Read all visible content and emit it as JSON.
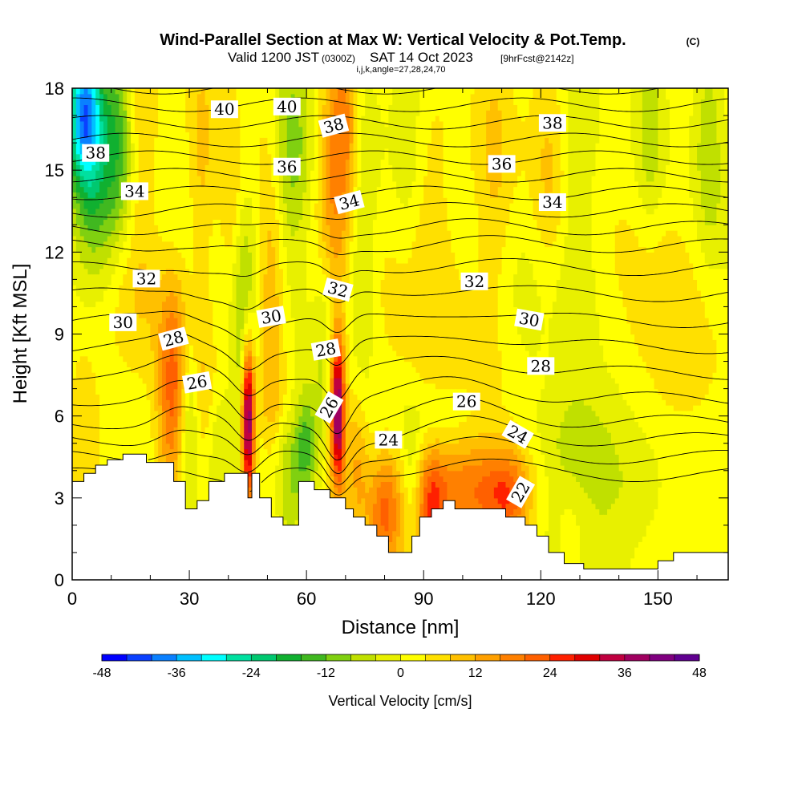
{
  "header": {
    "title": "Wind-Parallel Section at Max W: Vertical Velocity & Pot.Temp.",
    "copyright": "(C)",
    "valid_prefix": "Valid 1200 JST",
    "valid_utc": "(0300Z)",
    "valid_date": "SAT 14 Oct 2023",
    "forecast": "[9hrFcst@2142z]",
    "indices": "i,j,k,angle=27,28,24,70"
  },
  "colors": {
    "background": "#ffffff",
    "terrain": "#ffffff",
    "contour": "#000000",
    "colorbar": [
      "#0000ff",
      "#0a40ff",
      "#0a80ff",
      "#00c0ff",
      "#00ffff",
      "#00e0a0",
      "#00c870",
      "#10b030",
      "#40b820",
      "#80d010",
      "#c0e000",
      "#e8f000",
      "#ffff00",
      "#ffe000",
      "#ffc000",
      "#ffa000",
      "#ff8000",
      "#ff6000",
      "#ff2000",
      "#e00000",
      "#c00040",
      "#a00060",
      "#800080",
      "#600090"
    ]
  },
  "chart_data": {
    "type": "heatmap",
    "title": "Wind-Parallel Section at Max W: Vertical Velocity & Pot.Temp.",
    "xlabel": "Distance [nm]",
    "ylabel": "Height [Kft MSL]",
    "xlim": [
      0,
      168
    ],
    "ylim": [
      0,
      18
    ],
    "x_ticks": [
      0,
      30,
      60,
      90,
      120,
      150
    ],
    "y_ticks": [
      0,
      3,
      6,
      9,
      12,
      15,
      18
    ],
    "colorbar": {
      "label": "Vertical Velocity [cm/s]",
      "ticks": [
        -48,
        -36,
        -24,
        -12,
        0,
        12,
        24,
        36,
        48
      ],
      "range": [
        -48,
        48
      ],
      "step": 4
    },
    "terrain_profile": {
      "x": [
        0,
        3,
        3,
        6,
        6,
        9,
        9,
        13,
        13,
        19,
        19,
        26,
        26,
        29,
        29,
        32,
        32,
        35,
        35,
        39,
        39,
        45,
        45,
        46,
        46,
        48,
        48,
        51,
        51,
        54,
        54,
        58,
        58,
        62,
        62,
        66,
        66,
        70,
        70,
        72,
        72,
        75,
        75,
        78,
        78,
        81,
        81,
        84,
        84,
        87,
        87,
        89,
        89,
        92,
        92,
        95,
        95,
        98,
        98,
        111,
        111,
        116,
        116,
        119,
        119,
        122,
        122,
        126,
        126,
        131,
        131,
        144,
        144,
        150,
        150,
        154,
        154,
        168
      ],
      "y": [
        3.6,
        3.6,
        3.9,
        3.9,
        4.2,
        4.2,
        4.4,
        4.4,
        4.6,
        4.6,
        4.3,
        4.3,
        3.6,
        3.6,
        2.6,
        2.6,
        2.9,
        2.9,
        3.6,
        3.6,
        3.9,
        3.9,
        3.0,
        3.0,
        3.9,
        3.9,
        3.0,
        3.0,
        2.3,
        2.3,
        2.0,
        2.0,
        3.6,
        3.6,
        3.3,
        3.3,
        3.0,
        3.0,
        2.6,
        2.6,
        2.3,
        2.3,
        2.0,
        2.0,
        1.6,
        1.6,
        1.0,
        1.0,
        1.0,
        1.0,
        1.6,
        1.6,
        2.3,
        2.3,
        2.6,
        2.6,
        2.9,
        2.9,
        2.6,
        2.6,
        2.3,
        2.3,
        2.0,
        2.0,
        1.6,
        1.6,
        1.0,
        1.0,
        0.6,
        0.6,
        0.4,
        0.4,
        0.4,
        0.4,
        0.7,
        0.7,
        1.0,
        1.0
      ]
    },
    "velocity_features": [
      {
        "x": 45,
        "y": 5.8,
        "sx": 1.2,
        "sy": 2.2,
        "w": 46
      },
      {
        "x": 68,
        "y": 6.2,
        "sx": 1.3,
        "sy": 1.9,
        "w": 40
      },
      {
        "x": 44,
        "y": 10.0,
        "sx": 2.2,
        "sy": 4.5,
        "w": -14
      },
      {
        "x": 42,
        "y": 13.5,
        "sx": 3.0,
        "sy": 3.0,
        "w": 10
      },
      {
        "x": 51,
        "y": 9.0,
        "sx": 2.5,
        "sy": 5.5,
        "w": 12
      },
      {
        "x": 56,
        "y": 15.5,
        "sx": 4.0,
        "sy": 2.8,
        "w": -14
      },
      {
        "x": 65,
        "y": 9.0,
        "sx": 2.2,
        "sy": 3.0,
        "w": -12
      },
      {
        "x": 66,
        "y": 13.0,
        "sx": 2.5,
        "sy": 5.0,
        "w": 12
      },
      {
        "x": 70,
        "y": 16.5,
        "sx": 2.5,
        "sy": 2.5,
        "w": 16
      },
      {
        "x": 74,
        "y": 12.0,
        "sx": 2.5,
        "sy": 4.0,
        "w": -8
      },
      {
        "x": 3,
        "y": 17.2,
        "sx": 3.0,
        "sy": 1.8,
        "w": -32
      },
      {
        "x": 6,
        "y": 15.0,
        "sx": 4.0,
        "sy": 3.0,
        "w": -12
      },
      {
        "x": 5,
        "y": 13.5,
        "sx": 6.0,
        "sy": 3.0,
        "w": -6
      },
      {
        "x": 18,
        "y": 16.0,
        "sx": 3.0,
        "sy": 3.5,
        "w": 8
      },
      {
        "x": 12,
        "y": 16.5,
        "sx": 2.5,
        "sy": 2.5,
        "w": -10
      },
      {
        "x": 25,
        "y": 6.5,
        "sx": 2.5,
        "sy": 3.0,
        "w": 16
      },
      {
        "x": 27,
        "y": 8.0,
        "sx": 2.0,
        "sy": 2.5,
        "w": 6
      },
      {
        "x": 30,
        "y": 5.8,
        "sx": 1.8,
        "sy": 2.0,
        "w": -8
      },
      {
        "x": 34,
        "y": 6.0,
        "sx": 2.0,
        "sy": 2.5,
        "w": 8
      },
      {
        "x": 36,
        "y": 5.0,
        "sx": 2.5,
        "sy": 1.5,
        "w": -6
      },
      {
        "x": 55,
        "y": 4.8,
        "sx": 5.0,
        "sy": 1.0,
        "w": -8
      },
      {
        "x": 60,
        "y": 5.0,
        "sx": 2.0,
        "sy": 1.5,
        "w": -12
      },
      {
        "x": 55,
        "y": 3.0,
        "sx": 3.0,
        "sy": 1.0,
        "w": -8
      },
      {
        "x": 73,
        "y": 4.5,
        "sx": 2.0,
        "sy": 2.0,
        "w": 10
      },
      {
        "x": 80,
        "y": 2.5,
        "sx": 3.0,
        "sy": 1.5,
        "w": 16
      },
      {
        "x": 87,
        "y": 3.6,
        "sx": 2.0,
        "sy": 1.8,
        "w": -8
      },
      {
        "x": 92,
        "y": 2.5,
        "sx": 2.5,
        "sy": 1.5,
        "w": 14
      },
      {
        "x": 102,
        "y": 3.2,
        "sx": 10.0,
        "sy": 1.6,
        "w": 18
      },
      {
        "x": 97,
        "y": 5.8,
        "sx": 8.0,
        "sy": 1.0,
        "w": -5
      },
      {
        "x": 112,
        "y": 3.0,
        "sx": 4.0,
        "sy": 1.2,
        "w": 14
      },
      {
        "x": 128,
        "y": 5.0,
        "sx": 8.0,
        "sy": 1.5,
        "w": -6
      },
      {
        "x": 140,
        "y": 3.0,
        "sx": 12.0,
        "sy": 2.0,
        "w": -7
      },
      {
        "x": 128,
        "y": 1.8,
        "sx": 3.0,
        "sy": 1.5,
        "w": 4
      },
      {
        "x": 122,
        "y": 14.0,
        "sx": 3.0,
        "sy": 4.0,
        "w": 6
      },
      {
        "x": 108,
        "y": 15.0,
        "sx": 3.0,
        "sy": 4.0,
        "w": 6
      },
      {
        "x": 130,
        "y": 16.0,
        "sx": 3.0,
        "sy": 4.0,
        "w": -6
      },
      {
        "x": 148,
        "y": 16.5,
        "sx": 2.5,
        "sy": 2.5,
        "w": -8
      },
      {
        "x": 163,
        "y": 16.0,
        "sx": 2.5,
        "sy": 3.0,
        "w": -8
      },
      {
        "x": 125,
        "y": 11.0,
        "sx": 8.0,
        "sy": 2.5,
        "w": -4
      },
      {
        "x": 86,
        "y": 16.5,
        "sx": 2.5,
        "sy": 3.5,
        "w": -6
      },
      {
        "x": 90,
        "y": 13.5,
        "sx": 5.0,
        "sy": 3.0,
        "w": 5
      },
      {
        "x": 33,
        "y": 15.0,
        "sx": 2.5,
        "sy": 4.0,
        "w": 8
      },
      {
        "x": 100,
        "y": 10.0,
        "sx": 10.0,
        "sy": 5.0,
        "w": 4
      },
      {
        "x": 155,
        "y": 9.0,
        "sx": 8.0,
        "sy": 5.0,
        "w": 4
      },
      {
        "x": 16,
        "y": 10.5,
        "sx": 8.0,
        "sy": 2.0,
        "w": 4
      },
      {
        "x": 3,
        "y": 6.0,
        "sx": 3.0,
        "sy": 2.0,
        "w": 6
      }
    ],
    "potential_temperature": {
      "base_height": 3.2,
      "base_theta": 19,
      "lapse": [
        {
          "to_height": 6.0,
          "per_kft": 1.55
        },
        {
          "to_height": 12.0,
          "per_kft": 1.05
        },
        {
          "to_height": 18.0,
          "per_kft": 1.55
        }
      ],
      "levels": [
        20,
        21,
        22,
        23,
        24,
        25,
        26,
        27,
        28,
        29,
        30,
        31,
        32,
        33,
        34,
        35,
        36,
        37,
        38,
        39,
        40,
        41
      ],
      "wave_perturbations": [
        {
          "x": 45,
          "sx": 3.5,
          "amp_kft": -0.9
        },
        {
          "x": 68,
          "sx": 3.0,
          "amp_kft": -1.2
        },
        {
          "x": 27,
          "sx": 5.0,
          "amp_kft": 0.5
        },
        {
          "x": 100,
          "sx": 12.0,
          "amp_kft": 0.7
        }
      ],
      "labels": [
        {
          "text": "40",
          "x": 39,
          "y": 17.2,
          "angle": 0
        },
        {
          "text": "40",
          "x": 55,
          "y": 17.3,
          "angle": 0
        },
        {
          "text": "38",
          "x": 67,
          "y": 16.6,
          "angle": -15
        },
        {
          "text": "38",
          "x": 6,
          "y": 15.6,
          "angle": 0
        },
        {
          "text": "38",
          "x": 123,
          "y": 16.7,
          "angle": 0
        },
        {
          "text": "36",
          "x": 55,
          "y": 15.1,
          "angle": 0
        },
        {
          "text": "36",
          "x": 110,
          "y": 15.2,
          "angle": 0
        },
        {
          "text": "34",
          "x": 16,
          "y": 14.2,
          "angle": 0
        },
        {
          "text": "34",
          "x": 71,
          "y": 13.8,
          "angle": -15
        },
        {
          "text": "34",
          "x": 123,
          "y": 13.8,
          "angle": 0
        },
        {
          "text": "32",
          "x": 19,
          "y": 11.0,
          "angle": 0
        },
        {
          "text": "32",
          "x": 68,
          "y": 10.6,
          "angle": 15
        },
        {
          "text": "32",
          "x": 103,
          "y": 10.9,
          "angle": 0
        },
        {
          "text": "30",
          "x": 13,
          "y": 9.4,
          "angle": 0
        },
        {
          "text": "30",
          "x": 51,
          "y": 9.6,
          "angle": -10
        },
        {
          "text": "30",
          "x": 117,
          "y": 9.5,
          "angle": 10
        },
        {
          "text": "28",
          "x": 26,
          "y": 8.8,
          "angle": -15
        },
        {
          "text": "28",
          "x": 65,
          "y": 8.4,
          "angle": -10
        },
        {
          "text": "28",
          "x": 120,
          "y": 7.8,
          "angle": 0
        },
        {
          "text": "26",
          "x": 32,
          "y": 7.2,
          "angle": -10
        },
        {
          "text": "26",
          "x": 66,
          "y": 6.3,
          "angle": -60
        },
        {
          "text": "26",
          "x": 101,
          "y": 6.5,
          "angle": 0
        },
        {
          "text": "24",
          "x": 81,
          "y": 5.1,
          "angle": 0
        },
        {
          "text": "24",
          "x": 114,
          "y": 5.3,
          "angle": 30
        },
        {
          "text": "22",
          "x": 115,
          "y": 3.2,
          "angle": -60
        }
      ]
    }
  }
}
